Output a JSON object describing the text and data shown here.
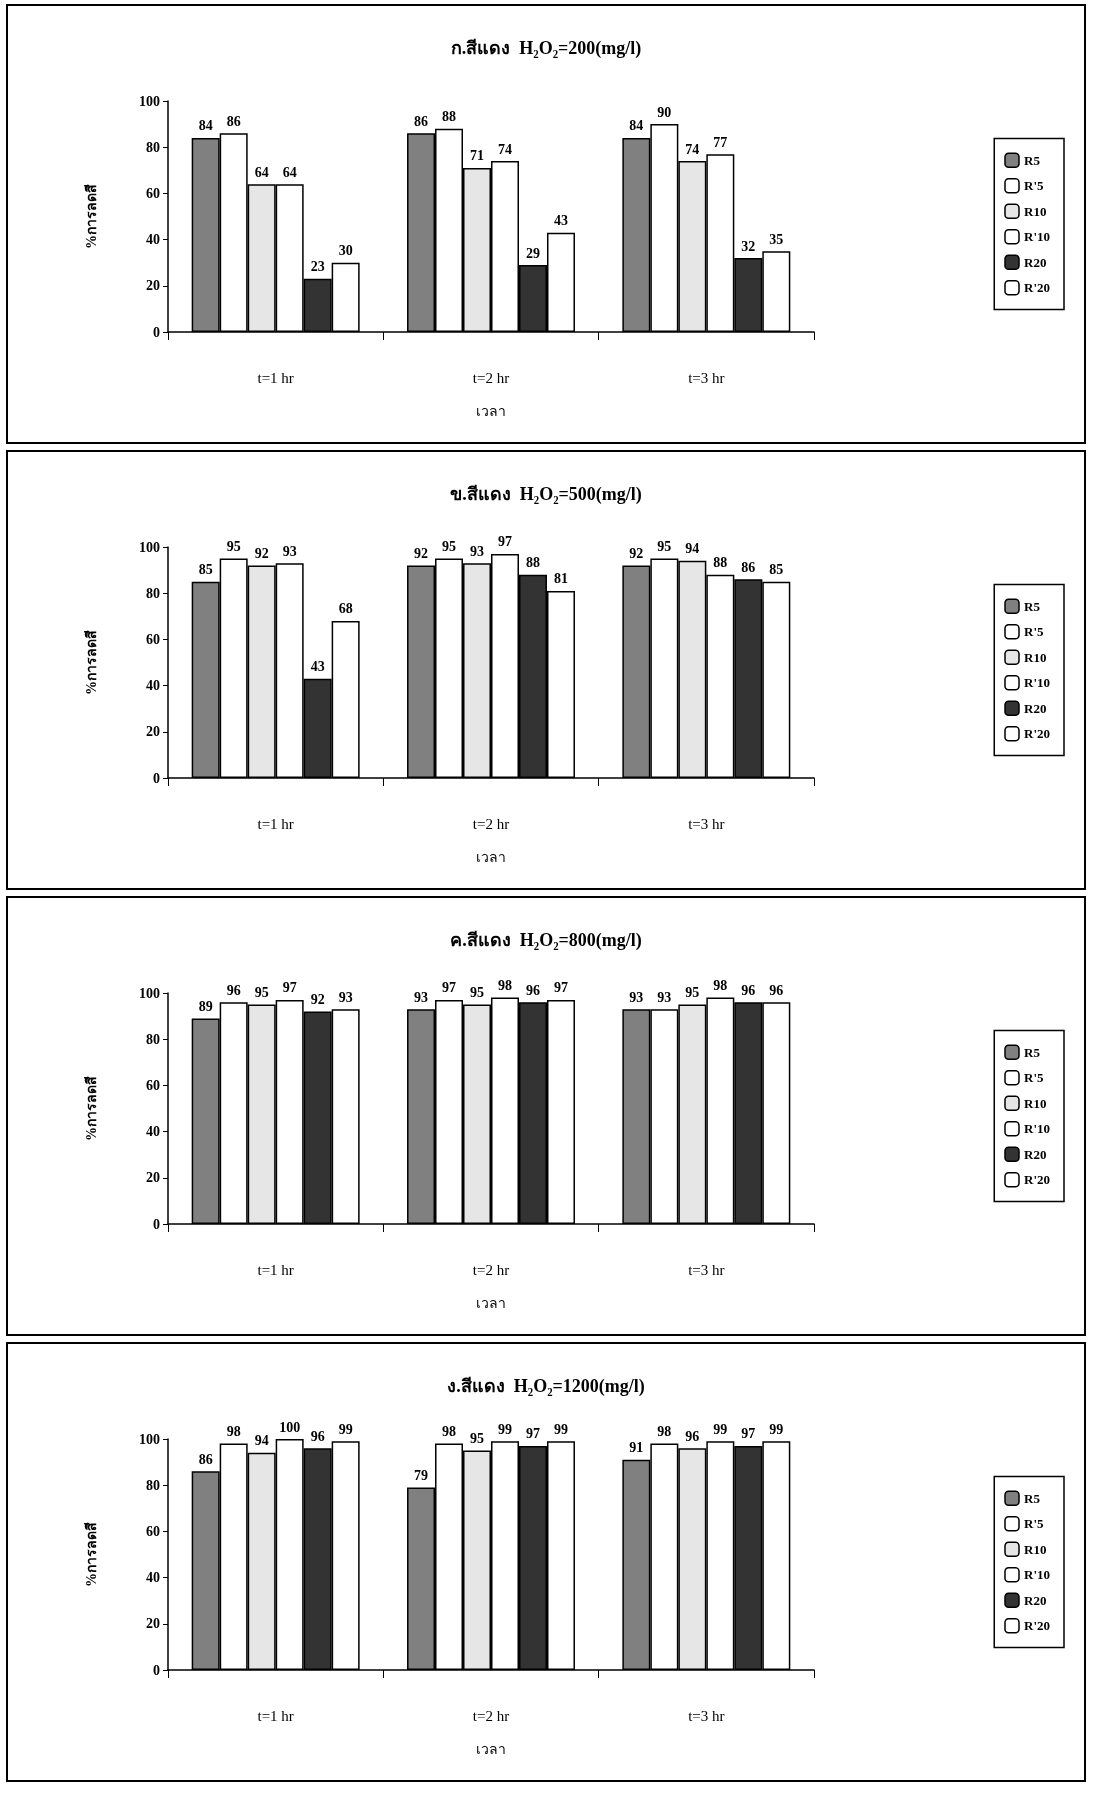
{
  "chart_data": [
    {
      "type": "bar",
      "title": "ก.สีแดง  H₂O₂=200(mg/l)",
      "xlabel": "เวลา",
      "ylabel": "%การลดสี",
      "categories": [
        "t=1 hr",
        "t=2 hr",
        "t=3 hr"
      ],
      "series": [
        {
          "name": "R5",
          "color": "#808080",
          "values": [
            84,
            86,
            84
          ]
        },
        {
          "name": "R'5",
          "color": "#ffffff",
          "values": [
            86,
            88,
            90
          ]
        },
        {
          "name": "R10",
          "color": "#e6e6e6",
          "values": [
            64,
            71,
            74
          ]
        },
        {
          "name": "R'10",
          "color": "#ffffff",
          "values": [
            64,
            74,
            77
          ]
        },
        {
          "name": "R20",
          "color": "#333333",
          "values": [
            23,
            29,
            32
          ]
        },
        {
          "name": "R'20",
          "color": "#ffffff",
          "values": [
            30,
            43,
            35
          ]
        }
      ],
      "ylim": [
        0,
        100
      ],
      "yticks": [
        0,
        20,
        40,
        60,
        80,
        100
      ],
      "grid": false,
      "legend": "right",
      "data_labels": true
    },
    {
      "type": "bar",
      "title": "ข.สีแดง  H₂O₂=500(mg/l)",
      "xlabel": "เวลา",
      "ylabel": "%การลดสี",
      "categories": [
        "t=1 hr",
        "t=2 hr",
        "t=3 hr"
      ],
      "series": [
        {
          "name": "R5",
          "color": "#808080",
          "values": [
            85,
            92,
            92
          ]
        },
        {
          "name": "R'5",
          "color": "#ffffff",
          "values": [
            95,
            95,
            95
          ]
        },
        {
          "name": "R10",
          "color": "#e6e6e6",
          "values": [
            92,
            93,
            94
          ]
        },
        {
          "name": "R'10",
          "color": "#ffffff",
          "values": [
            93,
            97,
            88
          ]
        },
        {
          "name": "R20",
          "color": "#333333",
          "values": [
            43,
            88,
            86
          ]
        },
        {
          "name": "R'20",
          "color": "#ffffff",
          "values": [
            68,
            81,
            85
          ]
        }
      ],
      "ylim": [
        0,
        100
      ],
      "yticks": [
        0,
        20,
        40,
        60,
        80,
        100
      ],
      "grid": false,
      "legend": "right",
      "data_labels": true
    },
    {
      "type": "bar",
      "title": "ค.สีแดง  H₂O₂=800(mg/l)",
      "xlabel": "เวลา",
      "ylabel": "%การลดสี",
      "categories": [
        "t=1 hr",
        "t=2 hr",
        "t=3 hr"
      ],
      "series": [
        {
          "name": "R5",
          "color": "#808080",
          "values": [
            89,
            93,
            93
          ]
        },
        {
          "name": "R'5",
          "color": "#ffffff",
          "values": [
            96,
            97,
            93
          ]
        },
        {
          "name": "R10",
          "color": "#e6e6e6",
          "values": [
            95,
            95,
            95
          ]
        },
        {
          "name": "R'10",
          "color": "#ffffff",
          "values": [
            97,
            98,
            98
          ]
        },
        {
          "name": "R20",
          "color": "#333333",
          "values": [
            92,
            96,
            96
          ]
        },
        {
          "name": "R'20",
          "color": "#ffffff",
          "values": [
            93,
            97,
            96
          ]
        }
      ],
      "ylim": [
        0,
        100
      ],
      "yticks": [
        0,
        20,
        40,
        60,
        80,
        100
      ],
      "grid": false,
      "legend": "right",
      "data_labels": true
    },
    {
      "type": "bar",
      "title": "ง.สีแดง  H₂O₂=1200(mg/l)",
      "xlabel": "เวลา",
      "ylabel": "%การลดสี",
      "categories": [
        "t=1 hr",
        "t=2 hr",
        "t=3 hr"
      ],
      "series": [
        {
          "name": "R5",
          "color": "#808080",
          "values": [
            86,
            79,
            91
          ]
        },
        {
          "name": "R'5",
          "color": "#ffffff",
          "values": [
            98,
            98,
            98
          ]
        },
        {
          "name": "R10",
          "color": "#e6e6e6",
          "values": [
            94,
            95,
            96
          ]
        },
        {
          "name": "R'10",
          "color": "#ffffff",
          "values": [
            100,
            99,
            99
          ]
        },
        {
          "name": "R20",
          "color": "#333333",
          "values": [
            96,
            97,
            97
          ]
        },
        {
          "name": "R'20",
          "color": "#ffffff",
          "values": [
            99,
            99,
            99
          ]
        }
      ],
      "ylim": [
        0,
        100
      ],
      "yticks": [
        0,
        20,
        40,
        60,
        80,
        100
      ],
      "grid": false,
      "legend": "right",
      "data_labels": true
    }
  ]
}
